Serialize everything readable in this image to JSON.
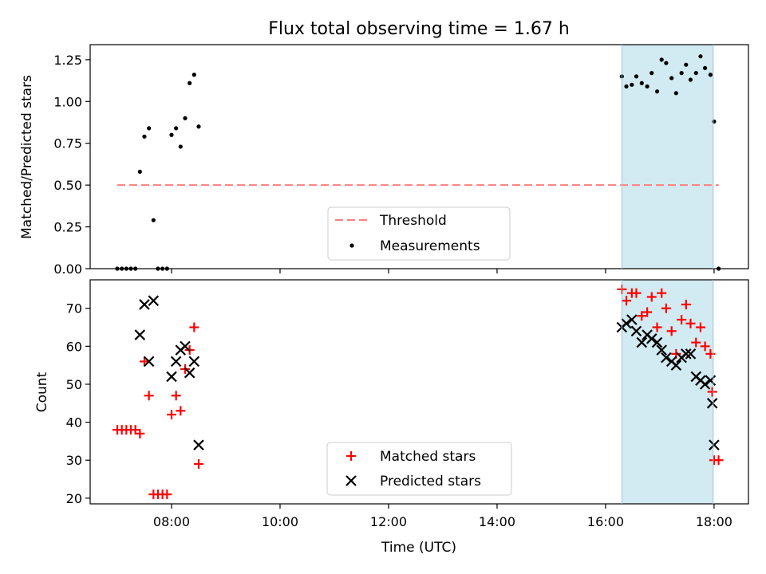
{
  "title": "Flux total observing time = 1.67 h",
  "chart_data": [
    {
      "type": "scatter",
      "ylabel": "Matched/Predicted stars",
      "xlim": [
        "06:30",
        "18:38"
      ],
      "ylim": [
        0,
        1.34
      ],
      "yticks": [
        "0.00",
        "0.25",
        "0.50",
        "0.75",
        "1.00",
        "1.25"
      ],
      "shaded_span": [
        "16:18",
        "17:59"
      ],
      "shade_color": "#add8e6",
      "threshold": {
        "name": "Threshold",
        "value": 0.5,
        "x_range": [
          "07:00",
          "18:05"
        ],
        "color": "#ff7f7f"
      },
      "series": [
        {
          "name": "Measurements",
          "color": "#000000",
          "points": [
            [
              "07:00",
              0.0
            ],
            [
              "07:05",
              0.0
            ],
            [
              "07:10",
              0.0
            ],
            [
              "07:15",
              0.0
            ],
            [
              "07:20",
              0.0
            ],
            [
              "07:25",
              0.58
            ],
            [
              "07:30",
              0.79
            ],
            [
              "07:35",
              0.84
            ],
            [
              "07:40",
              0.29
            ],
            [
              "07:45",
              0.0
            ],
            [
              "07:50",
              0.0
            ],
            [
              "07:55",
              0.0
            ],
            [
              "08:00",
              0.8
            ],
            [
              "08:05",
              0.84
            ],
            [
              "08:10",
              0.73
            ],
            [
              "08:15",
              0.9
            ],
            [
              "08:20",
              1.11
            ],
            [
              "08:25",
              1.16
            ],
            [
              "08:30",
              0.85
            ],
            [
              "16:18",
              1.15
            ],
            [
              "16:23",
              1.09
            ],
            [
              "16:29",
              1.1
            ],
            [
              "16:34",
              1.15
            ],
            [
              "16:40",
              1.11
            ],
            [
              "16:46",
              1.09
            ],
            [
              "16:51",
              1.17
            ],
            [
              "16:57",
              1.06
            ],
            [
              "17:02",
              1.25
            ],
            [
              "17:07",
              1.23
            ],
            [
              "17:13",
              1.14
            ],
            [
              "17:18",
              1.05
            ],
            [
              "17:24",
              1.17
            ],
            [
              "17:29",
              1.22
            ],
            [
              "17:34",
              1.13
            ],
            [
              "17:40",
              1.17
            ],
            [
              "17:45",
              1.27
            ],
            [
              "17:50",
              1.2
            ],
            [
              "17:56",
              1.16
            ],
            [
              "18:00",
              0.88
            ],
            [
              "18:05",
              0.0
            ]
          ]
        }
      ]
    },
    {
      "type": "scatter",
      "xlabel": "Time (UTC)",
      "ylabel": "Count",
      "xlim": [
        "06:30",
        "18:38"
      ],
      "ylim": [
        18.5,
        77.5
      ],
      "yticks": [
        "20",
        "30",
        "40",
        "50",
        "60",
        "70"
      ],
      "xticks": [
        "08:00",
        "10:00",
        "12:00",
        "14:00",
        "16:00",
        "18:00"
      ],
      "shaded_span": [
        "16:18",
        "17:59"
      ],
      "shade_color": "#add8e6",
      "series": [
        {
          "name": "Matched stars",
          "marker": "plus",
          "color": "#ff0000",
          "points": [
            [
              "07:00",
              38
            ],
            [
              "07:05",
              38
            ],
            [
              "07:10",
              38
            ],
            [
              "07:15",
              38
            ],
            [
              "07:20",
              38
            ],
            [
              "07:25",
              37
            ],
            [
              "07:30",
              56
            ],
            [
              "07:35",
              47
            ],
            [
              "07:40",
              21
            ],
            [
              "07:45",
              21
            ],
            [
              "07:50",
              21
            ],
            [
              "07:55",
              21
            ],
            [
              "08:00",
              42
            ],
            [
              "08:05",
              47
            ],
            [
              "08:10",
              43
            ],
            [
              "08:15",
              54
            ],
            [
              "08:20",
              59
            ],
            [
              "08:25",
              65
            ],
            [
              "08:30",
              29
            ],
            [
              "16:18",
              75
            ],
            [
              "16:23",
              72
            ],
            [
              "16:29",
              74
            ],
            [
              "16:34",
              74
            ],
            [
              "16:40",
              68
            ],
            [
              "16:46",
              69
            ],
            [
              "16:51",
              73
            ],
            [
              "16:57",
              65
            ],
            [
              "17:02",
              74
            ],
            [
              "17:07",
              70
            ],
            [
              "17:13",
              64
            ],
            [
              "17:18",
              58
            ],
            [
              "17:24",
              67
            ],
            [
              "17:29",
              71
            ],
            [
              "17:34",
              66
            ],
            [
              "17:40",
              61
            ],
            [
              "17:45",
              65
            ],
            [
              "17:50",
              60
            ],
            [
              "17:56",
              58
            ],
            [
              "18:00",
              30
            ],
            [
              "18:05",
              30
            ],
            [
              "17:58",
              48
            ]
          ]
        },
        {
          "name": "Predicted stars",
          "marker": "x",
          "color": "#000000",
          "points": [
            [
              "07:25",
              63
            ],
            [
              "07:30",
              71
            ],
            [
              "07:35",
              56
            ],
            [
              "07:40",
              72
            ],
            [
              "08:00",
              52
            ],
            [
              "08:05",
              56
            ],
            [
              "08:10",
              59
            ],
            [
              "08:15",
              60
            ],
            [
              "08:20",
              53
            ],
            [
              "08:25",
              56
            ],
            [
              "08:30",
              34
            ],
            [
              "16:18",
              65
            ],
            [
              "16:23",
              66
            ],
            [
              "16:29",
              67
            ],
            [
              "16:34",
              64
            ],
            [
              "16:40",
              61
            ],
            [
              "16:46",
              63
            ],
            [
              "16:51",
              62
            ],
            [
              "16:57",
              61
            ],
            [
              "17:02",
              59
            ],
            [
              "17:07",
              57
            ],
            [
              "17:13",
              56
            ],
            [
              "17:18",
              55
            ],
            [
              "17:24",
              57
            ],
            [
              "17:29",
              58
            ],
            [
              "17:34",
              58
            ],
            [
              "17:40",
              52
            ],
            [
              "17:45",
              51
            ],
            [
              "17:50",
              50
            ],
            [
              "17:56",
              51
            ],
            [
              "17:58",
              45
            ],
            [
              "18:00",
              34
            ]
          ]
        }
      ]
    }
  ]
}
